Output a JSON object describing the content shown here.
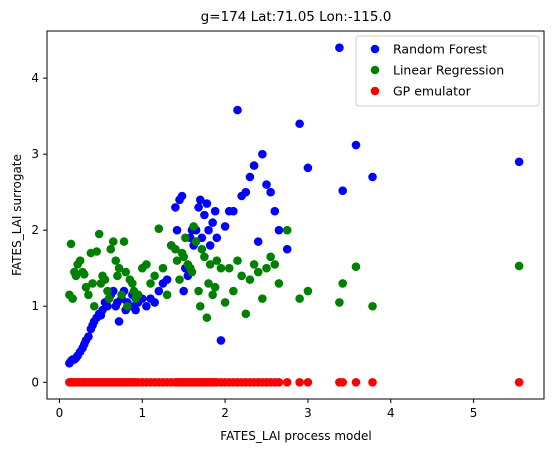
{
  "chart_data": {
    "type": "scatter",
    "title": "g=174 Lat:71.05 Lon:-115.0",
    "xlabel": "FATES_LAI process model",
    "ylabel": "FATES_LAI surrogate",
    "xlim": [
      -0.15,
      5.85
    ],
    "ylim": [
      -0.22,
      4.62
    ],
    "xticks": [
      0,
      1,
      2,
      3,
      4,
      5
    ],
    "yticks": [
      0,
      1,
      2,
      3,
      4
    ],
    "grid": false,
    "legend_position": "upper-right",
    "x": [
      0.12,
      0.14,
      0.16,
      0.18,
      0.2,
      0.22,
      0.25,
      0.28,
      0.3,
      0.32,
      0.35,
      0.38,
      0.4,
      0.42,
      0.45,
      0.48,
      0.5,
      0.52,
      0.55,
      0.58,
      0.6,
      0.62,
      0.65,
      0.68,
      0.7,
      0.72,
      0.75,
      0.78,
      0.8,
      0.82,
      0.85,
      0.88,
      0.9,
      0.92,
      0.95,
      1.0,
      1.05,
      1.1,
      1.15,
      1.2,
      1.25,
      1.3,
      1.35,
      1.4,
      1.42,
      1.45,
      1.48,
      1.5,
      1.52,
      1.55,
      1.58,
      1.6,
      1.62,
      1.65,
      1.68,
      1.7,
      1.72,
      1.75,
      1.78,
      1.8,
      1.82,
      1.85,
      1.88,
      1.9,
      1.95,
      2.0,
      2.05,
      2.1,
      2.15,
      2.2,
      2.25,
      2.3,
      2.35,
      2.4,
      2.45,
      2.5,
      2.55,
      2.6,
      2.65,
      2.75,
      2.9,
      3.0,
      3.38,
      3.42,
      3.58,
      3.78,
      5.55
    ],
    "series": [
      {
        "name": "Random Forest",
        "color": "#0000ff",
        "values": [
          0.25,
          0.28,
          0.3,
          0.3,
          0.32,
          0.35,
          0.4,
          0.45,
          0.5,
          0.55,
          0.6,
          0.7,
          0.75,
          0.8,
          0.85,
          0.9,
          0.88,
          0.95,
          1.05,
          1.0,
          1.1,
          1.15,
          1.2,
          1.0,
          1.05,
          0.8,
          1.1,
          1.2,
          0.95,
          1.05,
          1.0,
          1.15,
          1.0,
          0.95,
          1.05,
          1.1,
          1.0,
          1.1,
          1.05,
          1.2,
          1.3,
          1.35,
          1.8,
          2.3,
          2.0,
          2.4,
          2.45,
          1.2,
          1.5,
          1.4,
          1.9,
          2.0,
          1.8,
          2.0,
          2.3,
          2.4,
          1.9,
          2.2,
          2.35,
          2.0,
          1.8,
          2.1,
          2.25,
          1.9,
          0.55,
          2.05,
          2.25,
          2.25,
          3.58,
          2.45,
          2.5,
          2.7,
          2.85,
          1.85,
          3.0,
          2.6,
          2.5,
          2.25,
          2.0,
          1.75,
          3.4,
          2.82,
          4.4,
          2.52,
          3.12,
          2.7,
          2.9
        ]
      },
      {
        "name": "Linear Regression",
        "color": "#008000",
        "values": [
          1.15,
          1.82,
          1.1,
          1.45,
          1.4,
          1.55,
          1.6,
          1.45,
          1.42,
          1.25,
          1.15,
          1.7,
          1.3,
          1.0,
          1.72,
          1.95,
          1.3,
          1.4,
          1.35,
          1.2,
          1.1,
          1.75,
          1.85,
          1.6,
          1.4,
          1.5,
          1.15,
          1.85,
          1.45,
          1.0,
          1.35,
          1.3,
          1.2,
          1.1,
          1.15,
          1.5,
          1.55,
          1.3,
          1.4,
          2.02,
          1.5,
          1.15,
          1.8,
          1.75,
          1.6,
          1.35,
          1.7,
          1.65,
          1.9,
          1.55,
          1.5,
          1.45,
          2.05,
          1.85,
          1.2,
          1.0,
          1.75,
          1.65,
          0.85,
          1.3,
          1.55,
          1.15,
          1.25,
          1.6,
          1.5,
          1.05,
          1.5,
          1.2,
          1.6,
          1.4,
          0.9,
          1.35,
          1.55,
          1.45,
          1.1,
          1.5,
          1.65,
          1.55,
          1.3,
          2.0,
          1.1,
          1.2,
          1.05,
          1.3,
          1.52,
          1.0,
          1.53
        ]
      },
      {
        "name": "GP emulator",
        "color": "#ff0000",
        "values": [
          0,
          0,
          0,
          0,
          0,
          0,
          0,
          0,
          0,
          0,
          0,
          0,
          0,
          0,
          0,
          0,
          0,
          0,
          0,
          0,
          0,
          0,
          0,
          0,
          0,
          0,
          0,
          0,
          0,
          0,
          0,
          0,
          0,
          0,
          0,
          0,
          0,
          0,
          0,
          0,
          0,
          0,
          0,
          0,
          0,
          0,
          0,
          0,
          0,
          0,
          0,
          0,
          0,
          0,
          0,
          0,
          0,
          0,
          0,
          0,
          0,
          0,
          0,
          0,
          0,
          0,
          0,
          0,
          0,
          0,
          0,
          0,
          0,
          0,
          0,
          0,
          0,
          0,
          0,
          0,
          0,
          0,
          0,
          0,
          0,
          0,
          0
        ]
      }
    ]
  }
}
